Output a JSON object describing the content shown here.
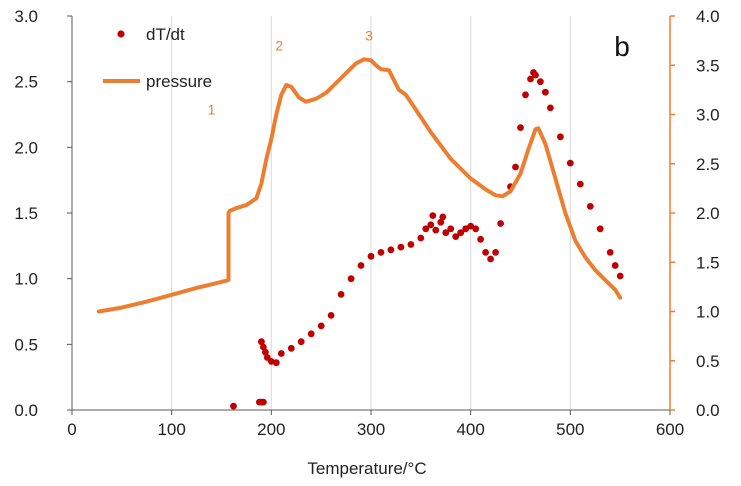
{
  "chart_data": {
    "type": "scatter",
    "title": "",
    "panel_label": "b",
    "xlabel": "Temperature/°C",
    "ylabel_left": "",
    "ylabel_right": "",
    "xlim": [
      0,
      600
    ],
    "ylim_left": [
      0,
      3.0
    ],
    "ylim_right": [
      0,
      4.0
    ],
    "x_ticks": [
      "0",
      "100",
      "200",
      "300",
      "400",
      "500",
      "600"
    ],
    "y_left_ticks": [
      "0.0",
      "0.5",
      "1.0",
      "1.5",
      "2.0",
      "2.5",
      "3.0"
    ],
    "y_right_ticks": [
      "0.0",
      "0.5",
      "1.0",
      "1.5",
      "2.0",
      "2.5",
      "3.0",
      "3.5",
      "4.0"
    ],
    "grid": "vertical",
    "legend_position": "top-left",
    "colors": {
      "dTdt": "#c00000",
      "pressure": "#ed7d31",
      "axis_right": "#ed7d31"
    },
    "annotations": [
      {
        "text": "1",
        "x": 140,
        "y_right": 3.0
      },
      {
        "text": "2",
        "x": 208,
        "y_right": 3.65
      },
      {
        "text": "3",
        "x": 298,
        "y_right": 3.75
      }
    ],
    "series": [
      {
        "name": "dT/dt",
        "axis": "left",
        "marker": "dot",
        "points": [
          [
            162,
            0.03
          ],
          [
            188,
            0.06
          ],
          [
            190,
            0.06
          ],
          [
            192,
            0.06
          ],
          [
            190,
            0.52
          ],
          [
            192,
            0.48
          ],
          [
            194,
            0.44
          ],
          [
            196,
            0.4
          ],
          [
            200,
            0.37
          ],
          [
            205,
            0.36
          ],
          [
            210,
            0.43
          ],
          [
            220,
            0.47
          ],
          [
            230,
            0.52
          ],
          [
            240,
            0.58
          ],
          [
            250,
            0.64
          ],
          [
            260,
            0.72
          ],
          [
            270,
            0.88
          ],
          [
            280,
            1.0
          ],
          [
            290,
            1.1
          ],
          [
            300,
            1.17
          ],
          [
            310,
            1.2
          ],
          [
            320,
            1.22
          ],
          [
            330,
            1.24
          ],
          [
            340,
            1.26
          ],
          [
            350,
            1.31
          ],
          [
            355,
            1.38
          ],
          [
            360,
            1.41
          ],
          [
            362,
            1.48
          ],
          [
            365,
            1.37
          ],
          [
            370,
            1.43
          ],
          [
            372,
            1.47
          ],
          [
            375,
            1.35
          ],
          [
            380,
            1.38
          ],
          [
            385,
            1.32
          ],
          [
            390,
            1.35
          ],
          [
            395,
            1.38
          ],
          [
            400,
            1.4
          ],
          [
            405,
            1.38
          ],
          [
            410,
            1.3
          ],
          [
            415,
            1.2
          ],
          [
            420,
            1.15
          ],
          [
            425,
            1.2
          ],
          [
            430,
            1.42
          ],
          [
            440,
            1.7
          ],
          [
            445,
            1.85
          ],
          [
            450,
            2.15
          ],
          [
            455,
            2.4
          ],
          [
            460,
            2.52
          ],
          [
            463,
            2.57
          ],
          [
            465,
            2.55
          ],
          [
            470,
            2.5
          ],
          [
            475,
            2.42
          ],
          [
            480,
            2.3
          ],
          [
            490,
            2.08
          ],
          [
            500,
            1.88
          ],
          [
            510,
            1.72
          ],
          [
            520,
            1.55
          ],
          [
            530,
            1.38
          ],
          [
            540,
            1.2
          ],
          [
            545,
            1.1
          ],
          [
            550,
            1.02
          ]
        ]
      },
      {
        "name": "pressure",
        "axis": "right",
        "marker": "line",
        "points": [
          [
            27,
            1.0
          ],
          [
            50,
            1.04
          ],
          [
            75,
            1.1
          ],
          [
            100,
            1.17
          ],
          [
            125,
            1.24
          ],
          [
            150,
            1.3
          ],
          [
            157,
            1.32
          ],
          [
            157,
            1.38
          ],
          [
            157,
            2.0
          ],
          [
            158,
            2.02
          ],
          [
            165,
            2.05
          ],
          [
            175,
            2.08
          ],
          [
            185,
            2.15
          ],
          [
            190,
            2.3
          ],
          [
            195,
            2.55
          ],
          [
            200,
            2.75
          ],
          [
            205,
            3.0
          ],
          [
            210,
            3.2
          ],
          [
            215,
            3.3
          ],
          [
            220,
            3.28
          ],
          [
            228,
            3.17
          ],
          [
            235,
            3.13
          ],
          [
            245,
            3.16
          ],
          [
            255,
            3.22
          ],
          [
            265,
            3.32
          ],
          [
            275,
            3.42
          ],
          [
            285,
            3.52
          ],
          [
            293,
            3.56
          ],
          [
            300,
            3.55
          ],
          [
            305,
            3.5
          ],
          [
            310,
            3.46
          ],
          [
            318,
            3.45
          ],
          [
            323,
            3.35
          ],
          [
            328,
            3.25
          ],
          [
            335,
            3.2
          ],
          [
            345,
            3.05
          ],
          [
            360,
            2.82
          ],
          [
            380,
            2.55
          ],
          [
            400,
            2.35
          ],
          [
            415,
            2.24
          ],
          [
            425,
            2.18
          ],
          [
            432,
            2.17
          ],
          [
            440,
            2.22
          ],
          [
            450,
            2.4
          ],
          [
            458,
            2.65
          ],
          [
            465,
            2.85
          ],
          [
            468,
            2.86
          ],
          [
            475,
            2.7
          ],
          [
            485,
            2.35
          ],
          [
            495,
            2.0
          ],
          [
            505,
            1.72
          ],
          [
            515,
            1.55
          ],
          [
            525,
            1.42
          ],
          [
            535,
            1.32
          ],
          [
            545,
            1.22
          ],
          [
            550,
            1.14
          ]
        ]
      }
    ]
  }
}
